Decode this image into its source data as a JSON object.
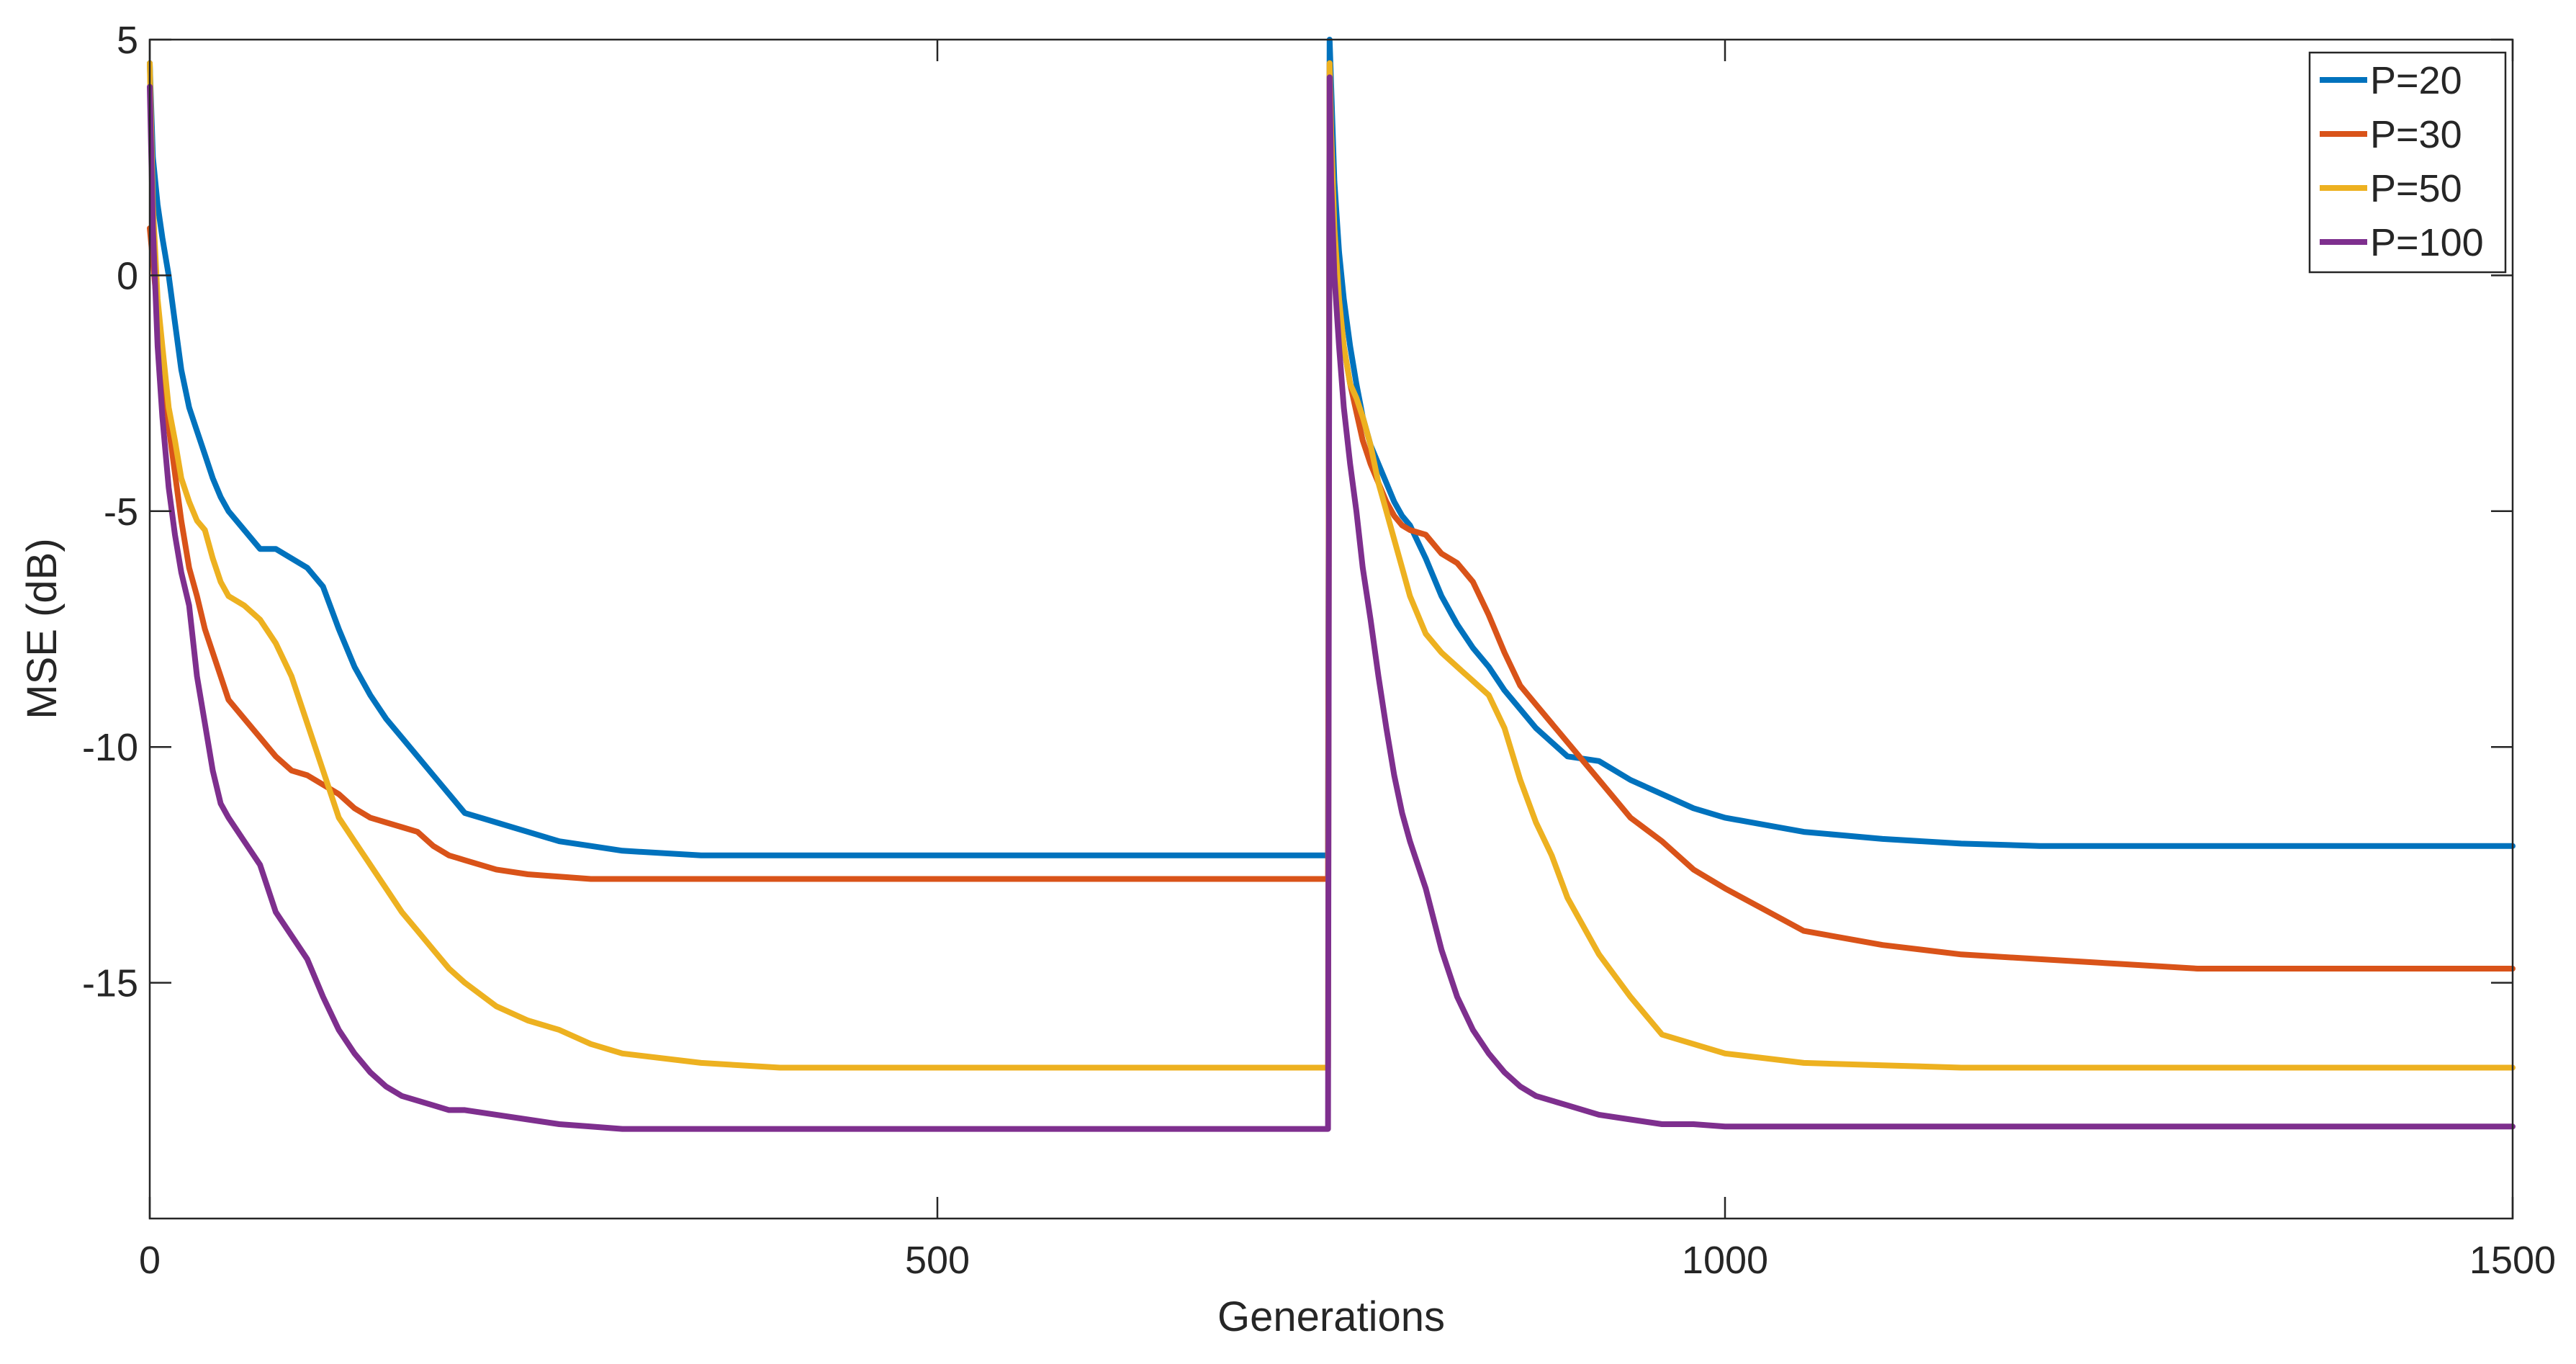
{
  "chart_data": {
    "type": "line",
    "title": "",
    "xlabel": "Generations",
    "ylabel": "MSE (dB)",
    "xlim": [
      0,
      1500
    ],
    "ylim": [
      -20,
      5
    ],
    "xticks": [
      0,
      500,
      1000,
      1500
    ],
    "xtick_labels": [
      "0",
      "500",
      "1000",
      "1500"
    ],
    "yticks": [
      5,
      0,
      -5,
      -10,
      -15
    ],
    "ytick_labels": [
      "5",
      "0",
      "-5",
      "-10",
      "-15"
    ],
    "grid": false,
    "legend_position": "top-right",
    "series": [
      {
        "name": "P=20",
        "color": "#0072BD",
        "x": [
          0,
          2,
          5,
          8,
          12,
          16,
          20,
          25,
          30,
          35,
          40,
          45,
          50,
          60,
          70,
          80,
          90,
          100,
          110,
          120,
          130,
          140,
          150,
          160,
          170,
          180,
          190,
          200,
          220,
          240,
          260,
          280,
          300,
          350,
          400,
          450,
          500,
          600,
          748,
          749,
          750,
          752,
          755,
          758,
          762,
          766,
          770,
          775,
          780,
          785,
          790,
          795,
          800,
          810,
          820,
          830,
          840,
          850,
          860,
          870,
          880,
          890,
          900,
          920,
          940,
          960,
          980,
          1000,
          1050,
          1100,
          1150,
          1200,
          1300,
          1400,
          1500
        ],
        "y": [
          4.5,
          2.5,
          1.5,
          0.8,
          0.0,
          -1.0,
          -2.0,
          -2.8,
          -3.3,
          -3.8,
          -4.3,
          -4.7,
          -5.0,
          -5.4,
          -5.8,
          -5.8,
          -6.0,
          -6.2,
          -6.6,
          -7.5,
          -8.3,
          -8.9,
          -9.4,
          -9.8,
          -10.2,
          -10.6,
          -11.0,
          -11.4,
          -11.6,
          -11.8,
          -12.0,
          -12.1,
          -12.2,
          -12.3,
          -12.3,
          -12.3,
          -12.3,
          -12.3,
          -12.3,
          5.0,
          4.0,
          2.0,
          0.5,
          -0.5,
          -1.5,
          -2.3,
          -3.0,
          -3.6,
          -4.0,
          -4.4,
          -4.8,
          -5.1,
          -5.3,
          -6.0,
          -6.8,
          -7.4,
          -7.9,
          -8.3,
          -8.8,
          -9.2,
          -9.6,
          -9.9,
          -10.2,
          -10.3,
          -10.7,
          -11.0,
          -11.3,
          -11.5,
          -11.8,
          -11.95,
          -12.05,
          -12.1,
          -12.1,
          -12.1,
          -12.1
        ]
      },
      {
        "name": "P=30",
        "color": "#D95319",
        "x": [
          0,
          2,
          5,
          8,
          12,
          16,
          20,
          25,
          30,
          35,
          40,
          45,
          50,
          60,
          70,
          80,
          90,
          100,
          110,
          120,
          130,
          140,
          150,
          160,
          170,
          180,
          190,
          200,
          220,
          240,
          260,
          280,
          300,
          350,
          400,
          450,
          500,
          600,
          748,
          749,
          750,
          752,
          755,
          758,
          762,
          766,
          770,
          775,
          780,
          785,
          790,
          795,
          800,
          810,
          820,
          830,
          840,
          850,
          860,
          870,
          880,
          890,
          900,
          920,
          940,
          960,
          980,
          1000,
          1050,
          1100,
          1150,
          1200,
          1250,
          1300,
          1400,
          1500
        ],
        "y": [
          1.0,
          0.3,
          -0.8,
          -2.0,
          -3.2,
          -4.2,
          -5.2,
          -6.2,
          -6.8,
          -7.5,
          -8.0,
          -8.5,
          -9.0,
          -9.4,
          -9.8,
          -10.2,
          -10.5,
          -10.6,
          -10.8,
          -11.0,
          -11.3,
          -11.5,
          -11.6,
          -11.7,
          -11.8,
          -12.1,
          -12.3,
          -12.4,
          -12.6,
          -12.7,
          -12.75,
          -12.8,
          -12.8,
          -12.8,
          -12.8,
          -12.8,
          -12.8,
          -12.8,
          -12.8,
          4.5,
          3.0,
          1.0,
          -0.5,
          -1.5,
          -2.3,
          -2.9,
          -3.5,
          -4.0,
          -4.4,
          -4.8,
          -5.1,
          -5.3,
          -5.4,
          -5.5,
          -5.9,
          -6.1,
          -6.5,
          -7.2,
          -8.0,
          -8.7,
          -9.1,
          -9.5,
          -9.9,
          -10.7,
          -11.5,
          -12.0,
          -12.6,
          -13.0,
          -13.9,
          -14.2,
          -14.4,
          -14.5,
          -14.6,
          -14.7,
          -14.7,
          -14.7
        ]
      },
      {
        "name": "P=50",
        "color": "#EDB120",
        "x": [
          0,
          2,
          5,
          8,
          12,
          16,
          20,
          25,
          30,
          35,
          40,
          45,
          50,
          60,
          70,
          80,
          90,
          100,
          110,
          120,
          130,
          140,
          150,
          160,
          170,
          180,
          190,
          200,
          220,
          240,
          260,
          280,
          300,
          350,
          400,
          450,
          500,
          600,
          748,
          749,
          750,
          752,
          755,
          758,
          762,
          766,
          770,
          775,
          780,
          785,
          790,
          795,
          800,
          810,
          820,
          830,
          840,
          850,
          860,
          870,
          880,
          890,
          900,
          920,
          940,
          960,
          980,
          1000,
          1050,
          1100,
          1150,
          1200,
          1300,
          1400,
          1500
        ],
        "y": [
          4.5,
          1.5,
          -0.5,
          -1.5,
          -2.8,
          -3.5,
          -4.3,
          -4.8,
          -5.2,
          -5.4,
          -6.0,
          -6.5,
          -6.8,
          -7.0,
          -7.3,
          -7.8,
          -8.5,
          -9.5,
          -10.5,
          -11.5,
          -12.0,
          -12.5,
          -13.0,
          -13.5,
          -13.9,
          -14.3,
          -14.7,
          -15.0,
          -15.5,
          -15.8,
          -16.0,
          -16.3,
          -16.5,
          -16.7,
          -16.8,
          -16.8,
          -16.8,
          -16.8,
          -16.8,
          4.5,
          3.0,
          1.0,
          -0.5,
          -1.5,
          -2.3,
          -2.6,
          -3.0,
          -3.6,
          -4.4,
          -5.0,
          -5.6,
          -6.2,
          -6.8,
          -7.6,
          -8.0,
          -8.3,
          -8.6,
          -8.9,
          -9.6,
          -10.7,
          -11.6,
          -12.3,
          -13.2,
          -14.4,
          -15.3,
          -16.1,
          -16.3,
          -16.5,
          -16.7,
          -16.75,
          -16.8,
          -16.8,
          -16.8,
          -16.8,
          -16.8
        ]
      },
      {
        "name": "P=100",
        "color": "#7E2F8E",
        "x": [
          0,
          2,
          5,
          8,
          12,
          16,
          20,
          25,
          30,
          35,
          40,
          45,
          50,
          60,
          70,
          80,
          90,
          100,
          110,
          120,
          130,
          140,
          150,
          160,
          170,
          180,
          190,
          200,
          220,
          240,
          260,
          280,
          300,
          350,
          400,
          450,
          500,
          600,
          748,
          749,
          750,
          752,
          755,
          758,
          762,
          766,
          770,
          775,
          780,
          785,
          790,
          795,
          800,
          810,
          820,
          830,
          840,
          850,
          860,
          870,
          880,
          890,
          900,
          920,
          940,
          960,
          980,
          1000,
          1050,
          1100,
          1150,
          1200,
          1300,
          1400,
          1500
        ],
        "y": [
          4.0,
          1.0,
          -1.5,
          -3.0,
          -4.5,
          -5.5,
          -6.3,
          -7.0,
          -8.5,
          -9.5,
          -10.5,
          -11.2,
          -11.5,
          -12.0,
          -12.5,
          -13.5,
          -14.0,
          -14.5,
          -15.3,
          -16.0,
          -16.5,
          -16.9,
          -17.2,
          -17.4,
          -17.5,
          -17.6,
          -17.7,
          -17.7,
          -17.8,
          -17.9,
          -18.0,
          -18.05,
          -18.1,
          -18.1,
          -18.1,
          -18.1,
          -18.1,
          -18.1,
          -18.1,
          4.2,
          2.0,
          0.0,
          -1.5,
          -2.8,
          -4.0,
          -5.0,
          -6.2,
          -7.3,
          -8.5,
          -9.6,
          -10.6,
          -11.4,
          -12.0,
          -13.0,
          -14.3,
          -15.3,
          -16.0,
          -16.5,
          -16.9,
          -17.2,
          -17.4,
          -17.5,
          -17.6,
          -17.8,
          -17.9,
          -18.0,
          -18.0,
          -18.05,
          -18.05,
          -18.05,
          -18.05,
          -18.05,
          -18.05,
          -18.05,
          -18.05
        ]
      }
    ]
  }
}
